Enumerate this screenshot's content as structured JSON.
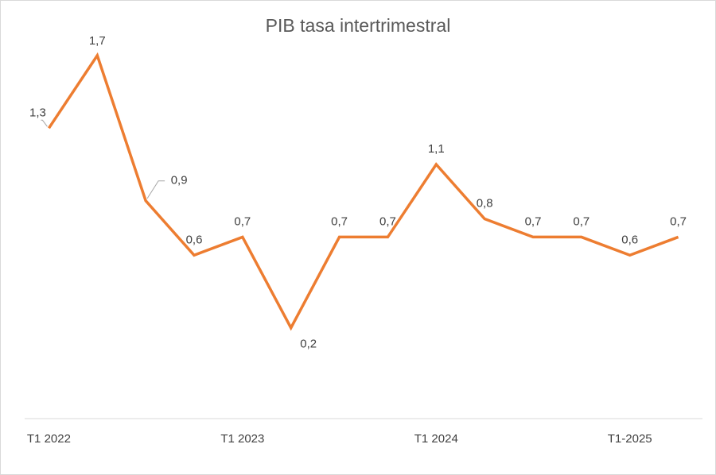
{
  "chart_data": {
    "type": "line",
    "title": "PIB tasa intertrimestral",
    "xlabel": "",
    "ylabel": "",
    "categories": [
      "T1 2022",
      "",
      "",
      "",
      "T1 2023",
      "",
      "",
      "",
      "T1 2024",
      "",
      "",
      "",
      "T1-2025",
      ""
    ],
    "series": [
      {
        "values": [
          1.3,
          1.7,
          0.9,
          0.6,
          0.7,
          0.2,
          0.7,
          0.7,
          1.1,
          0.8,
          0.7,
          0.7,
          0.6,
          0.7
        ],
        "data_labels": [
          "1,3",
          "1,7",
          "0,9",
          "0,6",
          "0,7",
          "0,2",
          "0,7",
          "0,7",
          "1,1",
          "0,8",
          "0,7",
          "0,7",
          "0,6",
          "0,7"
        ],
        "color": "#ED7D31"
      }
    ],
    "ylim": [
      -0.3,
      1.8
    ],
    "grid": false,
    "legend": "none",
    "axis_color": "#d9d9d9"
  }
}
